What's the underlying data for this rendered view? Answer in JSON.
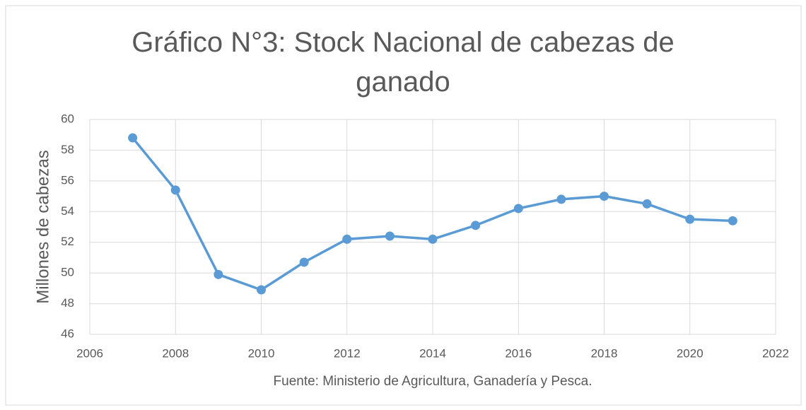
{
  "chart_data": {
    "type": "line",
    "title": "Gráfico N°3: Stock Nacional de cabezas de ganado",
    "ylabel": "Millones de cabezas",
    "annotation": "Fuente: Ministerio de Agricultura, Ganadería y Pesca.",
    "x": [
      2007,
      2008,
      2009,
      2010,
      2011,
      2012,
      2013,
      2014,
      2015,
      2016,
      2017,
      2018,
      2019,
      2020,
      2021
    ],
    "series": [
      {
        "color": "#5b9bd5",
        "values": [
          58.8,
          55.4,
          49.9,
          48.9,
          50.7,
          52.2,
          52.4,
          52.2,
          53.1,
          54.2,
          54.8,
          55.0,
          54.5,
          53.5,
          53.4
        ]
      }
    ],
    "xlim": [
      2006,
      2022
    ],
    "xticks": [
      2006,
      2008,
      2010,
      2012,
      2014,
      2016,
      2018,
      2020,
      2022
    ],
    "ylim": [
      46,
      60
    ],
    "yticks": [
      46,
      48,
      50,
      52,
      54,
      56,
      58,
      60
    ],
    "grid": true
  }
}
